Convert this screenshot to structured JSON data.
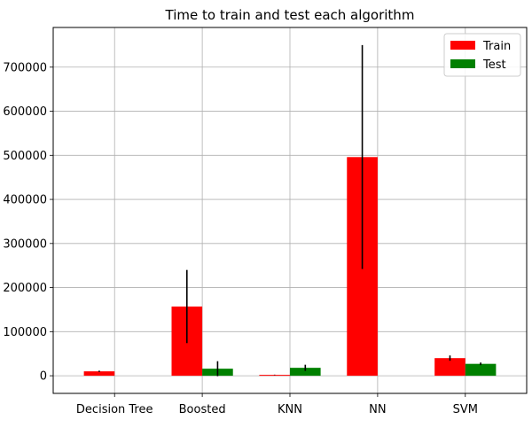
{
  "chart_data": {
    "type": "bar",
    "title": "Time to train and test each algorithm",
    "xlabel": "",
    "ylabel": "",
    "categories": [
      "Decision Tree",
      "Boosted",
      "KNN",
      "NN",
      "SVM"
    ],
    "series": [
      {
        "name": "Train",
        "color": "#ff0000",
        "values": [
          10000,
          157000,
          2000,
          496000,
          40000
        ],
        "error": [
          1500,
          83000,
          500,
          254000,
          6000
        ]
      },
      {
        "name": "Test",
        "color": "#008000",
        "values": [
          0,
          16000,
          18000,
          0,
          27000
        ],
        "error": [
          0,
          17000,
          7000,
          0,
          3000
        ]
      }
    ],
    "ylim": [
      -40000,
      790000
    ],
    "yticks": [
      0,
      100000,
      200000,
      300000,
      400000,
      500000,
      600000,
      700000
    ],
    "ytick_labels": [
      "0",
      "100000",
      "200000",
      "300000",
      "400000",
      "500000",
      "600000",
      "700000"
    ],
    "grid": true,
    "legend_position": "top-right"
  }
}
